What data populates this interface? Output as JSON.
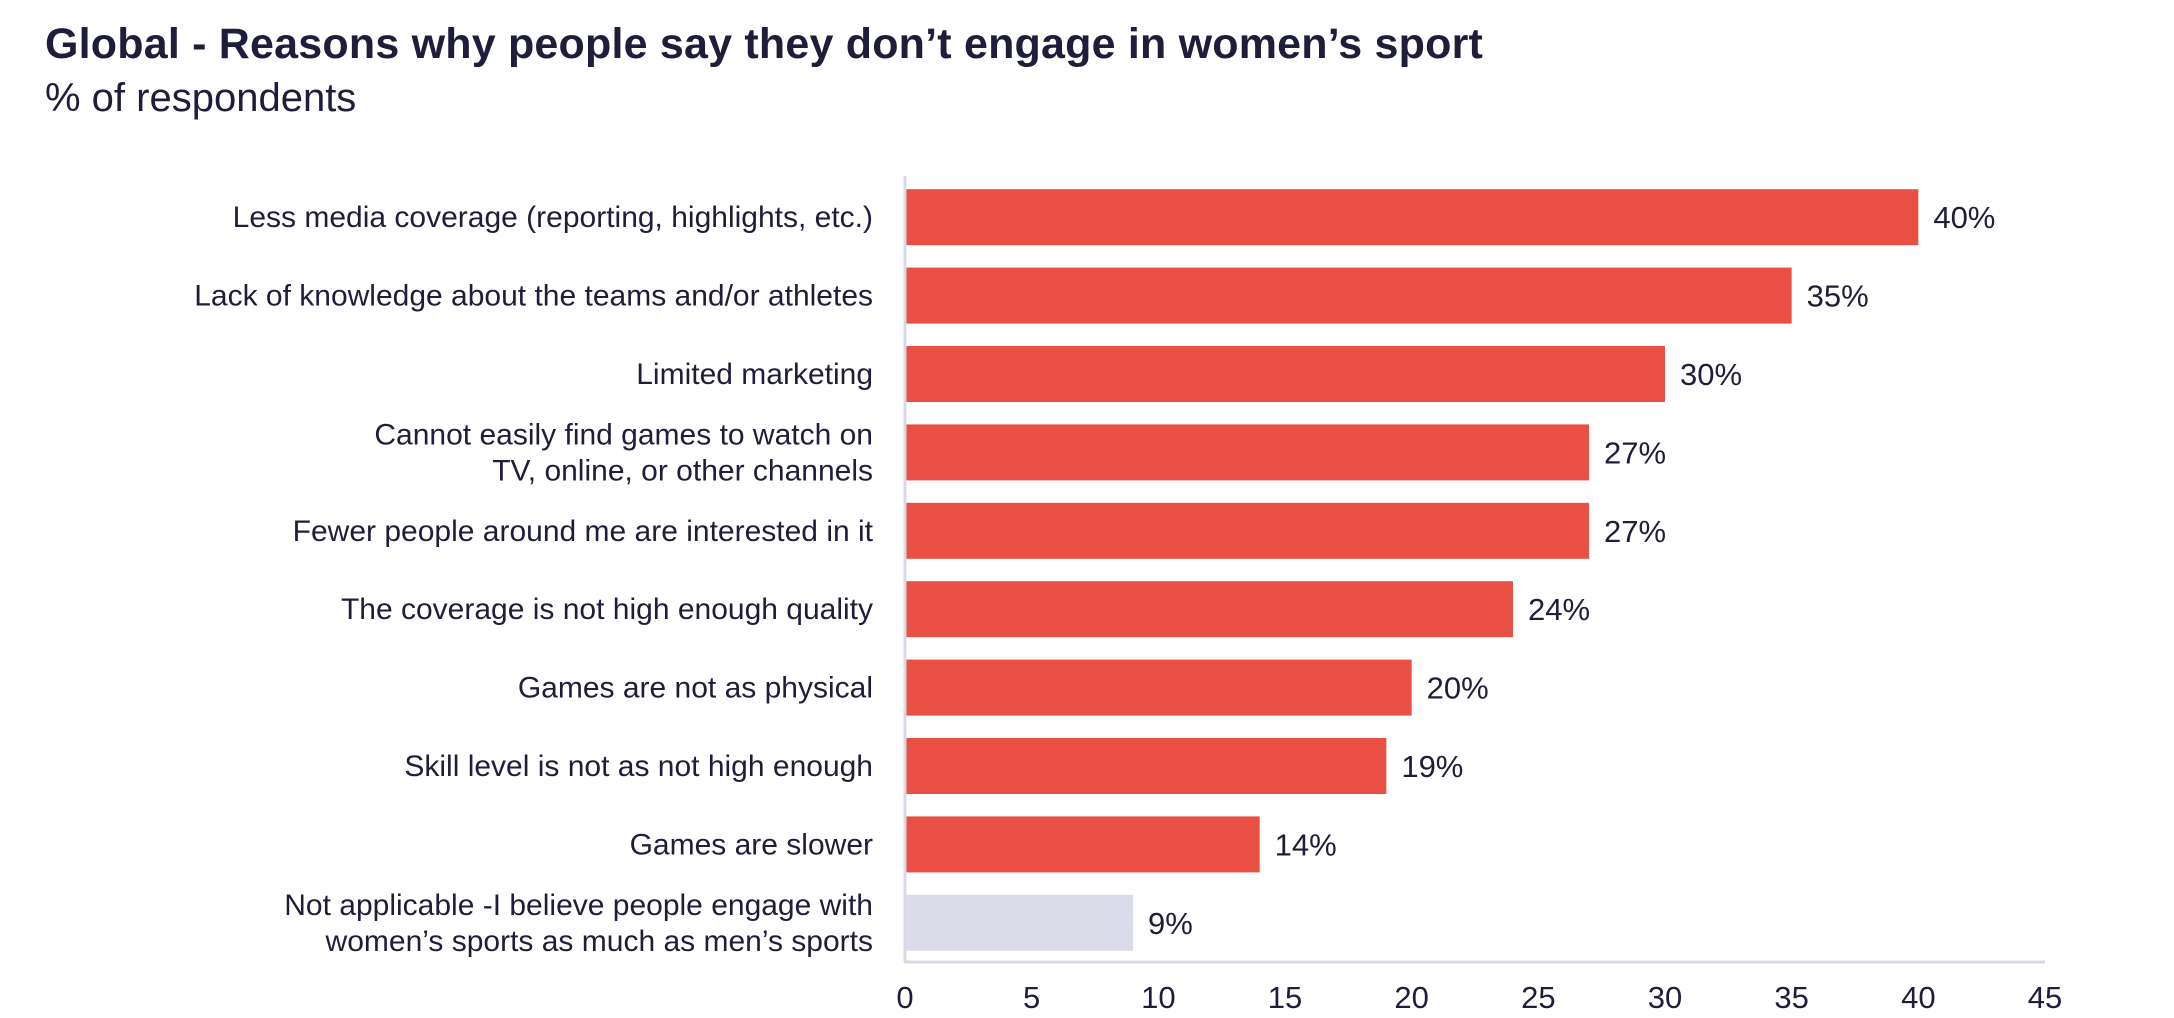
{
  "chart_data": {
    "type": "bar",
    "orientation": "horizontal",
    "title": "Global - Reasons why people say they don’t engage in women’s sport",
    "subtitle": "% of respondents",
    "categories": [
      [
        "Less media coverage (reporting, highlights, etc.)"
      ],
      [
        "Lack of knowledge about the teams and/or athletes"
      ],
      [
        "Limited marketing"
      ],
      [
        "Cannot easily find games to watch on",
        "TV, online, or other channels"
      ],
      [
        "Fewer people around me are interested in it"
      ],
      [
        "The coverage is not high enough quality"
      ],
      [
        "Games are not as physical"
      ],
      [
        "Skill level is not as not high enough"
      ],
      [
        "Games are slower"
      ],
      [
        "Not applicable -I believe people engage with",
        "women’s sports as much as men’s sports"
      ]
    ],
    "values": [
      40,
      35,
      30,
      27,
      27,
      24,
      20,
      19,
      14,
      9
    ],
    "data_labels": [
      "40%",
      "35%",
      "30%",
      "27%",
      "27%",
      "24%",
      "20%",
      "19%",
      "14%",
      "9%"
    ],
    "bar_colors": [
      "#e94f43",
      "#e94f43",
      "#e94f43",
      "#e94f43",
      "#e94f43",
      "#e94f43",
      "#e94f43",
      "#e94f43",
      "#e94f43",
      "#dcdbe9"
    ],
    "xlim": [
      0,
      45
    ],
    "xticks": [
      0,
      5,
      10,
      15,
      20,
      25,
      30,
      35,
      40,
      45
    ],
    "xlabel": "",
    "ylabel": "",
    "grid": false,
    "axis_color": "#d9d8e6"
  }
}
